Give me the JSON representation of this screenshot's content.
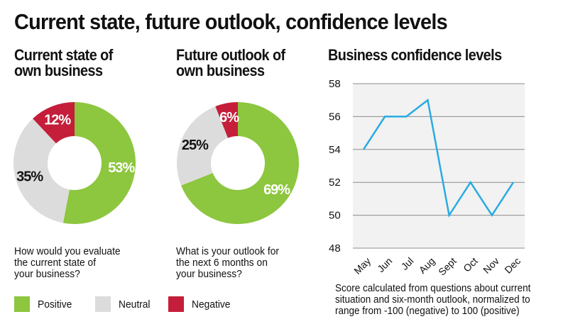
{
  "title": "Current state, future outlook, confidence levels",
  "colors": {
    "positive": "#8dc63f",
    "neutral": "#dcdcdc",
    "negative": "#c41e3a",
    "line": "#29abe2",
    "plot_bg": "#f2f2f2",
    "grid": "#8c8c8c"
  },
  "legend": [
    {
      "key": "positive",
      "label": "Positive"
    },
    {
      "key": "neutral",
      "label": "Neutral"
    },
    {
      "key": "negative",
      "label": "Negative"
    }
  ],
  "panels": {
    "current": {
      "title_line1": "Current state of",
      "title_line2": "own business",
      "question_line1": "How would you evaluate",
      "question_line2": "the current state of",
      "question_line3": "your business?"
    },
    "future": {
      "title_line1": "Future outlook of",
      "title_line2": "own business",
      "question_line1": "What is your outlook for",
      "question_line2": "the next 6 months on",
      "question_line3": "your business?"
    },
    "confidence": {
      "title": "Business confidence levels",
      "note_line1": "Score calculated from questions about current",
      "note_line2": "situation and six-month outlook, normalized to",
      "note_line3": "range from -100 (negative) to 100 (positive)"
    }
  },
  "chart_data": [
    {
      "type": "pie",
      "variant": "donut",
      "title": "Current state of own business",
      "categories": [
        "Positive",
        "Neutral",
        "Negative"
      ],
      "values": [
        53,
        35,
        12
      ],
      "labels": [
        "53%",
        "35%",
        "12%"
      ],
      "start": "top, clockwise"
    },
    {
      "type": "pie",
      "variant": "donut",
      "title": "Future outlook of own business",
      "categories": [
        "Positive",
        "Neutral",
        "Negative"
      ],
      "values": [
        69,
        25,
        6
      ],
      "labels": [
        "69%",
        "25%",
        "6%"
      ],
      "start": "top, clockwise"
    },
    {
      "type": "line",
      "title": "Business confidence levels",
      "x": [
        "May",
        "Jun",
        "Jul",
        "Aug",
        "Sept",
        "Oct",
        "Nov",
        "Dec"
      ],
      "series": [
        {
          "name": "Confidence",
          "values": [
            54,
            56,
            56,
            57,
            50,
            52,
            50,
            52
          ]
        }
      ],
      "xlabel": "",
      "ylabel": "",
      "ylim": [
        48,
        58
      ],
      "yticks": [
        48,
        50,
        52,
        54,
        56,
        58
      ],
      "grid": true,
      "legend": "none"
    }
  ]
}
